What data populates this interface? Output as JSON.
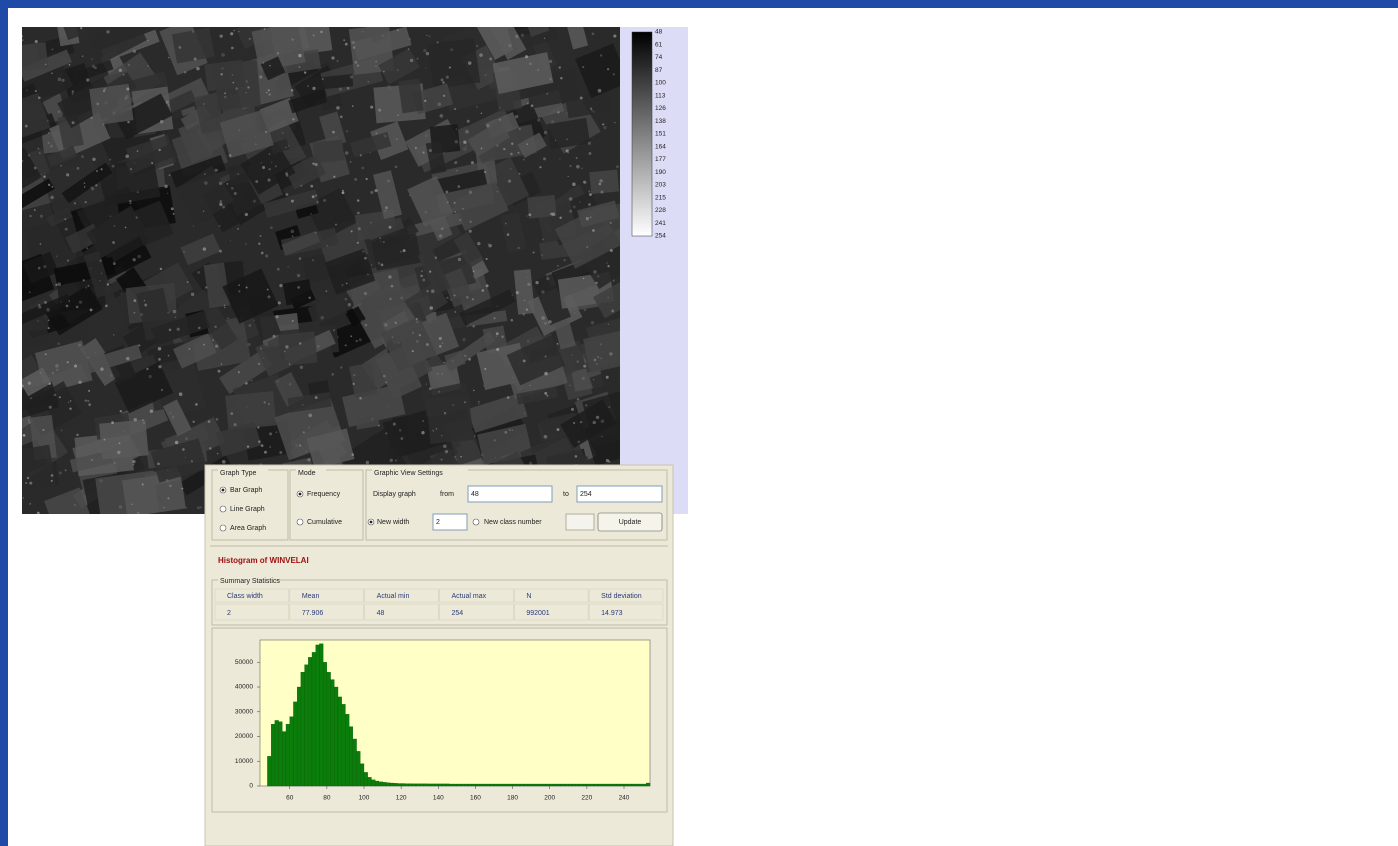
{
  "legend": {
    "labels": [
      48,
      61,
      74,
      87,
      100,
      113,
      126,
      138,
      151,
      164,
      177,
      190,
      203,
      215,
      228,
      241,
      254
    ]
  },
  "graph_type": {
    "title": "Graph Type",
    "options": [
      "Bar Graph",
      "Line Graph",
      "Area Graph"
    ],
    "selected": 0
  },
  "mode": {
    "title": "Mode",
    "options": [
      "Frequency",
      "Cumulative"
    ],
    "selected": 0
  },
  "view_settings": {
    "title": "Graphic View Settings",
    "display_graph": "Display graph",
    "from_label": "from",
    "from": 48,
    "to_label": "to",
    "to": 254,
    "new_width_label": "New width",
    "new_width": 2,
    "new_class_label": "New class number",
    "update": "Update"
  },
  "histogram_title": "Histogram of WINVELAI",
  "summary": {
    "title": "Summary Statistics",
    "headers": [
      "Class width",
      "Mean",
      "Actual min",
      "Actual max",
      "N",
      "Std deviation"
    ],
    "row": [
      2,
      77.906,
      48,
      254,
      992001,
      14.973
    ]
  },
  "chart_data": {
    "type": "histogram",
    "color": "#0b7d0b",
    "bins": [
      48,
      50,
      52,
      54,
      56,
      58,
      60,
      62,
      64,
      66,
      68,
      70,
      72,
      74,
      76,
      78,
      80,
      82,
      84,
      86,
      88,
      90,
      92,
      94,
      96,
      98,
      100,
      102,
      104,
      106,
      108,
      110,
      112,
      114,
      116,
      118,
      120,
      122,
      124,
      126,
      128,
      130,
      132,
      134,
      136,
      138,
      140,
      142,
      144,
      146,
      148,
      150,
      152,
      154,
      156,
      158,
      160,
      162,
      164,
      166,
      168,
      170,
      172,
      174,
      176,
      178,
      180,
      182,
      184,
      186,
      188,
      190,
      192,
      194,
      196,
      198,
      200,
      202,
      204,
      206,
      208,
      210,
      212,
      214,
      216,
      218,
      220,
      222,
      224,
      226,
      228,
      230,
      232,
      234,
      236,
      238,
      240,
      242,
      244,
      246,
      248,
      250,
      252,
      254
    ],
    "values": [
      12000,
      25000,
      26500,
      26000,
      22000,
      25000,
      28000,
      34000,
      40000,
      46000,
      49000,
      52000,
      54000,
      57000,
      57500,
      50000,
      46000,
      43000,
      40000,
      36000,
      33000,
      29000,
      24000,
      19000,
      14000,
      9000,
      5500,
      3500,
      2500,
      2000,
      1700,
      1500,
      1300,
      1200,
      1100,
      1000,
      1000,
      950,
      950,
      900,
      900,
      900,
      900,
      850,
      850,
      850,
      850,
      850,
      850,
      800,
      800,
      800,
      800,
      800,
      800,
      800,
      800,
      800,
      800,
      800,
      800,
      800,
      800,
      800,
      800,
      800,
      800,
      800,
      800,
      800,
      800,
      800,
      800,
      800,
      800,
      800,
      800,
      800,
      800,
      800,
      800,
      800,
      800,
      800,
      800,
      800,
      800,
      800,
      800,
      800,
      800,
      800,
      800,
      800,
      800,
      800,
      800,
      800,
      800,
      800,
      800,
      800,
      1200
    ],
    "xlim": [
      44,
      254
    ],
    "ylim": [
      0,
      59000
    ],
    "xticks": [
      60,
      80,
      100,
      120,
      140,
      160,
      180,
      200,
      220,
      240
    ],
    "yticks": [
      0,
      10000,
      20000,
      30000,
      40000,
      50000
    ]
  }
}
